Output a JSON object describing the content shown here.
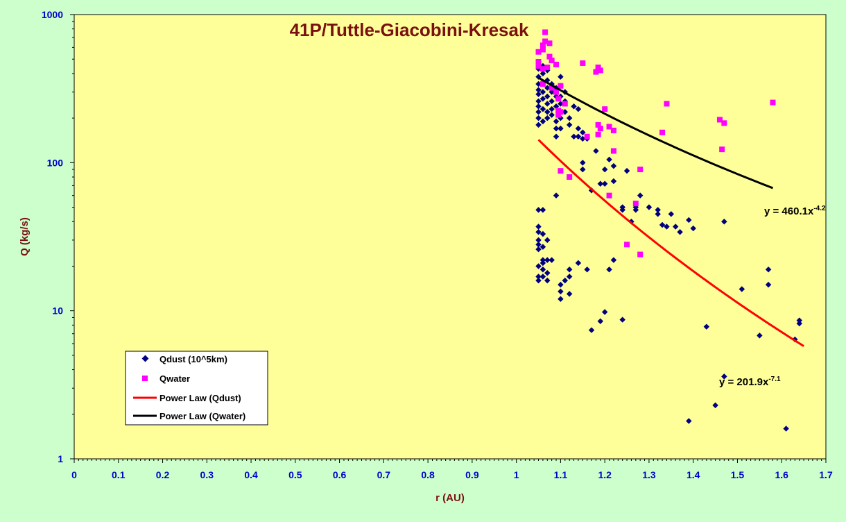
{
  "chart_data": {
    "type": "scatter",
    "title": "41P/Tuttle-Giacobini-Kresak",
    "xlabel": "r (AU)",
    "ylabel": "Q (kg/s)",
    "xlim": [
      0,
      1.7
    ],
    "ylim": [
      1,
      1000
    ],
    "yscale": "log",
    "x_ticks": [
      "0",
      "0.1",
      "0.2",
      "0.3",
      "0.4",
      "0.5",
      "0.6",
      "0.7",
      "0.8",
      "0.9",
      "1",
      "1.1",
      "1.2",
      "1.3",
      "1.4",
      "1.5",
      "1.6",
      "1.7"
    ],
    "y_ticks": [
      "1",
      "10",
      "100",
      "1000"
    ],
    "legend_position": "bottom-left",
    "series": [
      {
        "name": "Qdust (10^5km)",
        "marker": "diamond",
        "color": "#000080",
        "points": [
          [
            1.05,
            480
          ],
          [
            1.05,
            430
          ],
          [
            1.05,
            380
          ],
          [
            1.05,
            340
          ],
          [
            1.05,
            310
          ],
          [
            1.05,
            290
          ],
          [
            1.05,
            260
          ],
          [
            1.05,
            240
          ],
          [
            1.05,
            220
          ],
          [
            1.05,
            200
          ],
          [
            1.05,
            180
          ],
          [
            1.06,
            450
          ],
          [
            1.06,
            400
          ],
          [
            1.06,
            350
          ],
          [
            1.06,
            300
          ],
          [
            1.06,
            270
          ],
          [
            1.06,
            230
          ],
          [
            1.06,
            190
          ],
          [
            1.07,
            420
          ],
          [
            1.07,
            360
          ],
          [
            1.07,
            320
          ],
          [
            1.07,
            280
          ],
          [
            1.07,
            250
          ],
          [
            1.07,
            220
          ],
          [
            1.07,
            200
          ],
          [
            1.08,
            340
          ],
          [
            1.08,
            300
          ],
          [
            1.08,
            260
          ],
          [
            1.08,
            230
          ],
          [
            1.08,
            210
          ],
          [
            1.09,
            320
          ],
          [
            1.09,
            280
          ],
          [
            1.09,
            240
          ],
          [
            1.09,
            190
          ],
          [
            1.09,
            170
          ],
          [
            1.09,
            150
          ],
          [
            1.1,
            380
          ],
          [
            1.1,
            330
          ],
          [
            1.1,
            280
          ],
          [
            1.1,
            250
          ],
          [
            1.1,
            220
          ],
          [
            1.1,
            200
          ],
          [
            1.1,
            170
          ],
          [
            1.11,
            300
          ],
          [
            1.11,
            260
          ],
          [
            1.11,
            220
          ],
          [
            1.12,
            200
          ],
          [
            1.12,
            180
          ],
          [
            1.13,
            240
          ],
          [
            1.14,
            230
          ],
          [
            1.14,
            170
          ],
          [
            1.14,
            150
          ],
          [
            1.15,
            160
          ],
          [
            1.15,
            145
          ],
          [
            1.16,
            145
          ],
          [
            1.15,
            100
          ],
          [
            1.15,
            90
          ],
          [
            1.18,
            120
          ],
          [
            1.2,
            90
          ],
          [
            1.21,
            105
          ],
          [
            1.22,
            95
          ],
          [
            1.22,
            75
          ],
          [
            1.19,
            72
          ],
          [
            1.2,
            72
          ],
          [
            1.17,
            65
          ],
          [
            1.05,
            48
          ],
          [
            1.06,
            48
          ],
          [
            1.05,
            37
          ],
          [
            1.05,
            34
          ],
          [
            1.06,
            33
          ],
          [
            1.05,
            30
          ],
          [
            1.07,
            30
          ],
          [
            1.05,
            28
          ],
          [
            1.06,
            27
          ],
          [
            1.05,
            26
          ],
          [
            1.06,
            22
          ],
          [
            1.06,
            21
          ],
          [
            1.07,
            22
          ],
          [
            1.08,
            22
          ],
          [
            1.05,
            20
          ],
          [
            1.06,
            19
          ],
          [
            1.05,
            17
          ],
          [
            1.06,
            17
          ],
          [
            1.05,
            16
          ],
          [
            1.07,
            16
          ],
          [
            1.07,
            18
          ],
          [
            1.09,
            60
          ],
          [
            1.13,
            150
          ],
          [
            1.1,
            15
          ],
          [
            1.11,
            16
          ],
          [
            1.12,
            17
          ],
          [
            1.12,
            19
          ],
          [
            1.1,
            13.5
          ],
          [
            1.12,
            13
          ],
          [
            1.1,
            12
          ],
          [
            1.14,
            21
          ],
          [
            1.16,
            19
          ],
          [
            1.21,
            19
          ],
          [
            1.22,
            22
          ],
          [
            1.24,
            50
          ],
          [
            1.24,
            48
          ],
          [
            1.25,
            88
          ],
          [
            1.27,
            50
          ],
          [
            1.28,
            60
          ],
          [
            1.27,
            48
          ],
          [
            1.26,
            40
          ],
          [
            1.3,
            50
          ],
          [
            1.32,
            48
          ],
          [
            1.32,
            45
          ],
          [
            1.33,
            38
          ],
          [
            1.34,
            37
          ],
          [
            1.35,
            45
          ],
          [
            1.36,
            37
          ],
          [
            1.37,
            34
          ],
          [
            1.39,
            41
          ],
          [
            1.4,
            36
          ],
          [
            1.47,
            40
          ],
          [
            1.51,
            14
          ],
          [
            1.55,
            6.8
          ],
          [
            1.57,
            15
          ],
          [
            1.57,
            19
          ],
          [
            1.63,
            6.4
          ],
          [
            1.64,
            8.2
          ],
          [
            1.64,
            8.6
          ],
          [
            1.17,
            7.4
          ],
          [
            1.19,
            8.5
          ],
          [
            1.2,
            9.8
          ],
          [
            1.24,
            8.7
          ],
          [
            1.43,
            7.8
          ],
          [
            1.39,
            1.8
          ],
          [
            1.45,
            2.3
          ],
          [
            1.47,
            3.6
          ],
          [
            1.61,
            1.6
          ]
        ]
      },
      {
        "name": "Qwater",
        "marker": "square",
        "color": "#ff00ff",
        "points": [
          [
            1.05,
            560
          ],
          [
            1.05,
            480
          ],
          [
            1.05,
            450
          ],
          [
            1.06,
            620
          ],
          [
            1.06,
            580
          ],
          [
            1.06,
            430
          ],
          [
            1.06,
            340
          ],
          [
            1.065,
            760
          ],
          [
            1.065,
            660
          ],
          [
            1.07,
            440
          ],
          [
            1.075,
            640
          ],
          [
            1.075,
            520
          ],
          [
            1.08,
            490
          ],
          [
            1.08,
            320
          ],
          [
            1.09,
            460
          ],
          [
            1.09,
            300
          ],
          [
            1.095,
            270
          ],
          [
            1.095,
            225
          ],
          [
            1.095,
            210
          ],
          [
            1.1,
            330
          ],
          [
            1.1,
            220
          ],
          [
            1.1,
            88
          ],
          [
            1.11,
            250
          ],
          [
            1.12,
            80
          ],
          [
            1.15,
            470
          ],
          [
            1.16,
            150
          ],
          [
            1.18,
            410
          ],
          [
            1.185,
            440
          ],
          [
            1.19,
            420
          ],
          [
            1.185,
            180
          ],
          [
            1.19,
            170
          ],
          [
            1.185,
            155
          ],
          [
            1.2,
            230
          ],
          [
            1.21,
            175
          ],
          [
            1.22,
            165
          ],
          [
            1.22,
            120
          ],
          [
            1.21,
            60
          ],
          [
            1.25,
            28
          ],
          [
            1.27,
            53
          ],
          [
            1.28,
            24
          ],
          [
            1.28,
            90
          ],
          [
            1.34,
            250
          ],
          [
            1.33,
            160
          ],
          [
            1.46,
            195
          ],
          [
            1.47,
            185
          ],
          [
            1.465,
            123
          ],
          [
            1.58,
            255
          ]
        ]
      },
      {
        "name": "Power Law (Qdust)",
        "type": "line",
        "color": "#ff0000",
        "coefficient": 201.9,
        "exponent": -7.1,
        "x_range": [
          1.05,
          1.65
        ],
        "equation_label": "y = 201.9x",
        "equation_exponent": "-7.1"
      },
      {
        "name": "Power Law (Qwater)",
        "type": "line",
        "color": "#000000",
        "coefficient": 460.1,
        "exponent": -4.2,
        "x_range": [
          1.05,
          1.58
        ],
        "equation_label": "y = 460.1x",
        "equation_exponent": "-4.2"
      }
    ]
  }
}
